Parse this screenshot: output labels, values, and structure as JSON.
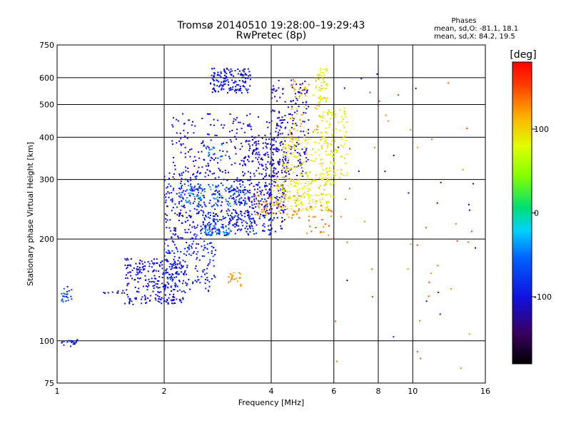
{
  "chart_data": {
    "type": "scatter",
    "title": "Tromsø 20140510 19:28:00–19:29:43",
    "subtitle": "RwPretec (8p)",
    "xlabel": "Frequency [MHz]",
    "ylabel": "Stationary phase Virtual Height [km]",
    "x_scale": "log",
    "y_scale": "log",
    "xlim": [
      1,
      16
    ],
    "ylim": [
      75,
      750
    ],
    "x_ticks": [
      "1",
      "2",
      "4",
      "6",
      "8",
      "10",
      "16"
    ],
    "y_ticks": [
      "75",
      "100",
      "200",
      "300",
      "400",
      "500",
      "600",
      "750"
    ],
    "grid": true,
    "stats": {
      "header": "Phases",
      "line_o": "mean, sd,O: -81.1, 18.1",
      "line_x": "mean, sd,X:  84.2, 19.5"
    },
    "colorbar": {
      "unit": "[deg]",
      "range": [
        -180,
        180
      ],
      "ticks": [
        "100",
        "0",
        "-100"
      ],
      "tick_values": [
        100,
        0,
        -100
      ]
    },
    "clusters": [
      {
        "f": [
          1.03,
          1.14
        ],
        "h": [
          96,
          101
        ],
        "phase": -100,
        "count": 20
      },
      {
        "f": [
          1.02,
          1.1
        ],
        "h": [
          130,
          145
        ],
        "phase": -85,
        "count": 25
      },
      {
        "f": [
          1.35,
          1.55
        ],
        "h": [
          138,
          142
        ],
        "phase": -105,
        "count": 10
      },
      {
        "f": [
          1.55,
          2.3
        ],
        "h": [
          128,
          175
        ],
        "phase": -105,
        "count": 260
      },
      {
        "f": [
          2.0,
          2.8
        ],
        "h": [
          140,
          200
        ],
        "phase": -95,
        "count": 160
      },
      {
        "f": [
          3.0,
          3.35
        ],
        "h": [
          145,
          160
        ],
        "phase": 140,
        "count": 22
      },
      {
        "f": [
          2.0,
          2.6
        ],
        "h": [
          200,
          320
        ],
        "phase": -100,
        "count": 130
      },
      {
        "f": [
          2.1,
          4.4
        ],
        "h": [
          210,
          470
        ],
        "phase": -110,
        "count": 480
      },
      {
        "f": [
          2.2,
          3.4
        ],
        "h": [
          250,
          290
        ],
        "phase": -70,
        "count": 110
      },
      {
        "f": [
          2.6,
          4.0
        ],
        "h": [
          205,
          240
        ],
        "phase": -95,
        "count": 160
      },
      {
        "f": [
          2.6,
          3.1
        ],
        "h": [
          205,
          220
        ],
        "phase": -60,
        "count": 40
      },
      {
        "f": [
          3.0,
          4.4
        ],
        "h": [
          240,
          300
        ],
        "phase": -110,
        "count": 120
      },
      {
        "f": [
          3.3,
          4.1
        ],
        "h": [
          300,
          400
        ],
        "phase": -115,
        "count": 70
      },
      {
        "f": [
          4.0,
          5.1
        ],
        "h": [
          300,
          590
        ],
        "phase": -115,
        "count": 200
      },
      {
        "f": [
          2.7,
          3.5
        ],
        "h": [
          540,
          640
        ],
        "phase": -100,
        "count": 150
      },
      {
        "f": [
          2.6,
          3.0
        ],
        "h": [
          340,
          380
        ],
        "phase": -70,
        "count": 20
      },
      {
        "f": [
          3.6,
          4.8
        ],
        "h": [
          230,
          270
        ],
        "phase": 145,
        "count": 60
      },
      {
        "f": [
          4.0,
          6.0
        ],
        "h": [
          240,
          300
        ],
        "phase": 112,
        "count": 170
      },
      {
        "f": [
          4.3,
          6.0
        ],
        "h": [
          290,
          400
        ],
        "phase": 110,
        "count": 150
      },
      {
        "f": [
          5.5,
          6.6
        ],
        "h": [
          300,
          490
        ],
        "phase": 108,
        "count": 110
      },
      {
        "f": [
          4.5,
          5.7
        ],
        "h": [
          400,
          600
        ],
        "phase": 130,
        "count": 70
      },
      {
        "f": [
          5.4,
          5.8
        ],
        "h": [
          500,
          640
        ],
        "phase": 105,
        "count": 40
      },
      {
        "f": [
          5.0,
          6.0
        ],
        "h": [
          200,
          260
        ],
        "phase": 150,
        "count": 25
      },
      {
        "f": [
          6.0,
          15.0
        ],
        "h": [
          80,
          620
        ],
        "phase": 150,
        "count": 40
      },
      {
        "f": [
          6.0,
          15.0
        ],
        "h": [
          95,
          620
        ],
        "phase": -110,
        "count": 20
      }
    ]
  }
}
